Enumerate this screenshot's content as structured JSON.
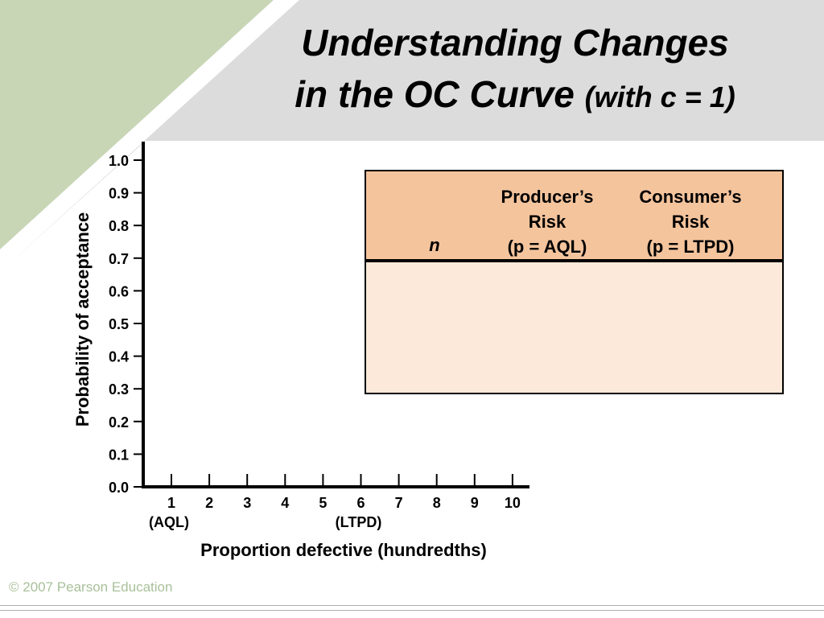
{
  "slide": {
    "title_line1": "Understanding Changes",
    "title_line2_main": "in the OC Curve",
    "title_line2_paren": "(with c = 1)",
    "copyright": "© 2007 Pearson Education"
  },
  "colors": {
    "green_band": "#c8d6b6",
    "gray_band": "#dcdcdc",
    "table_header": "#f4c49d",
    "table_body": "#fde9d9"
  },
  "risk_table": {
    "col_n": "n",
    "col_producer": [
      "Producer’s",
      "Risk",
      "(p = AQL)"
    ],
    "col_consumer": [
      "Consumer’s",
      "Risk",
      "(p = LTPD)"
    ],
    "rows": []
  },
  "chart_data": {
    "type": "line",
    "ylabel": "Probability of acceptance",
    "xlabel": "Proportion defective (hundredths)",
    "ylim": [
      0.0,
      1.0
    ],
    "y_ticks": [
      "0.0",
      "0.1",
      "0.2",
      "0.3",
      "0.4",
      "0.5",
      "0.6",
      "0.7",
      "0.8",
      "0.9",
      "1.0"
    ],
    "x_ticks": [
      1,
      2,
      3,
      4,
      5,
      6,
      7,
      8,
      9,
      10
    ],
    "x_ticks_label": [
      "1",
      "2",
      "3",
      "4",
      "5",
      "6",
      "7",
      "8",
      "9",
      "10"
    ],
    "annotations": [
      {
        "x": 1,
        "text": "(AQL)"
      },
      {
        "x": 6,
        "text": "(LTPD)"
      }
    ],
    "series": []
  }
}
